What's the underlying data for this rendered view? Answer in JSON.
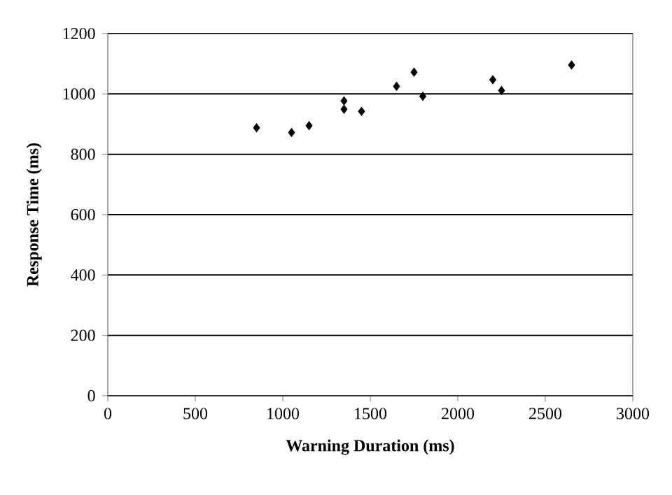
{
  "chart_data": {
    "type": "scatter",
    "xlabel": "Warning Duration (ms)",
    "ylabel": "Response Time (ms)",
    "x": [
      850,
      1050,
      1150,
      1350,
      1350,
      1450,
      1650,
      1750,
      1800,
      2200,
      2250,
      2650
    ],
    "values": [
      888,
      872,
      895,
      977,
      949,
      942,
      1025,
      1072,
      992,
      1047,
      1011,
      1096
    ],
    "color": "#000000",
    "marker": "diamond",
    "xlim": [
      0,
      3000
    ],
    "xticks": [
      0,
      500,
      1000,
      1500,
      2000,
      2500,
      3000
    ],
    "ylim": [
      0,
      1200
    ],
    "yticks": [
      0,
      200,
      400,
      600,
      800,
      1000,
      1200
    ],
    "grid": "y"
  }
}
